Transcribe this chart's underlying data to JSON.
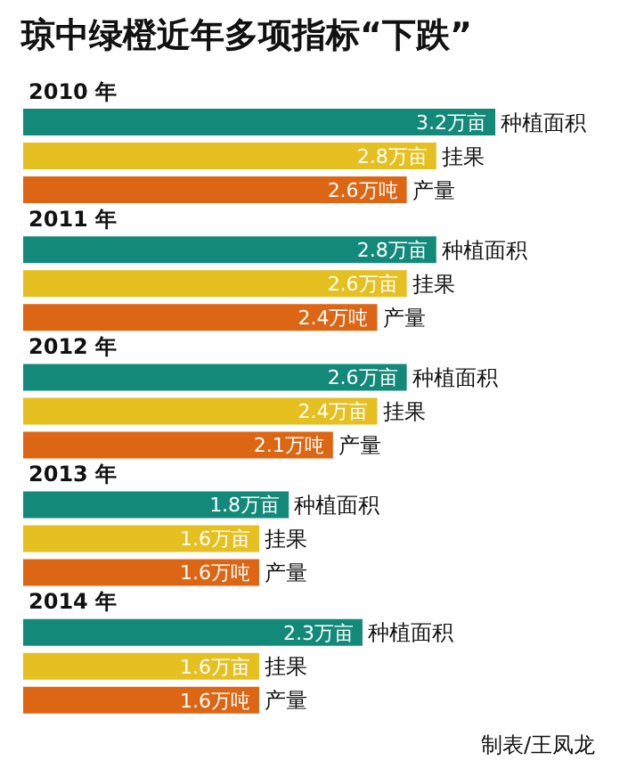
{
  "chart_data": {
    "type": "bar",
    "orientation": "horizontal",
    "title": "琼中绿橙近年多项指标“下跌”",
    "categories": [
      "2010 年",
      "2011 年",
      "2012 年",
      "2013 年",
      "2014 年"
    ],
    "series": [
      {
        "name": "种植面积",
        "color": "#13897a",
        "values": [
          3.2,
          2.8,
          2.6,
          1.8,
          2.3
        ],
        "value_labels": [
          "3.2万亩",
          "2.8万亩",
          "2.6万亩",
          "1.8万亩",
          "2.3万亩"
        ]
      },
      {
        "name": "挂果",
        "color": "#e5c020",
        "values": [
          2.8,
          2.6,
          2.4,
          1.6,
          1.6
        ],
        "value_labels": [
          "2.8万亩",
          "2.6万亩",
          "2.4万亩",
          "1.6万亩",
          "1.6万亩"
        ]
      },
      {
        "name": "产量",
        "color": "#dd6614",
        "values": [
          2.6,
          2.4,
          2.1,
          1.6,
          1.6
        ],
        "value_labels": [
          "2.6万吨",
          "2.4万吨",
          "2.1万吨",
          "1.6万吨",
          "1.6万吨"
        ]
      }
    ],
    "annotations": [
      "制表/王凤龙"
    ]
  }
}
